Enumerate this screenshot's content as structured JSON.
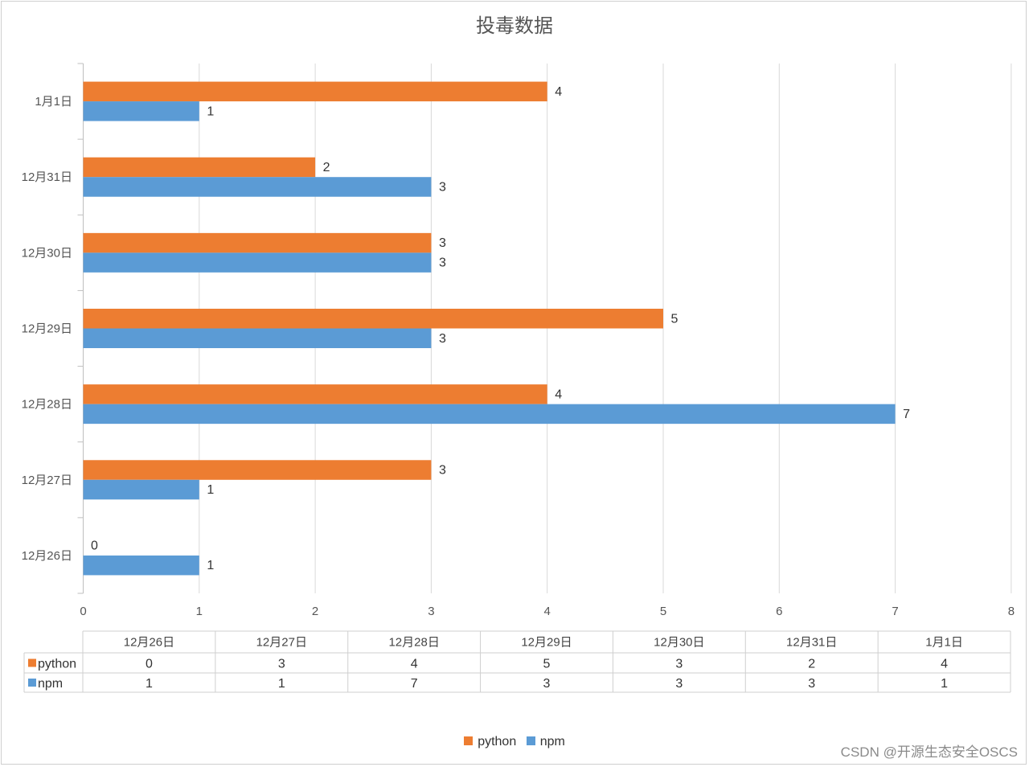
{
  "chart_data": {
    "type": "bar",
    "orientation": "horizontal",
    "title": "投毒数据",
    "categories": [
      "12月26日",
      "12月27日",
      "12月28日",
      "12月29日",
      "12月30日",
      "12月31日",
      "1月1日"
    ],
    "series": [
      {
        "name": "python",
        "color": "#ED7D31",
        "values": [
          0,
          3,
          4,
          5,
          3,
          2,
          4
        ]
      },
      {
        "name": "npm",
        "color": "#5B9BD5",
        "values": [
          1,
          1,
          7,
          3,
          3,
          3,
          1
        ]
      }
    ],
    "xlim": [
      0,
      8
    ],
    "xticks": [
      "0",
      "1",
      "2",
      "3",
      "4",
      "5",
      "6",
      "7",
      "8"
    ],
    "grid": true,
    "data_table": true,
    "legend_position": "bottom"
  },
  "watermark": "CSDN @开源生态安全OSCS"
}
